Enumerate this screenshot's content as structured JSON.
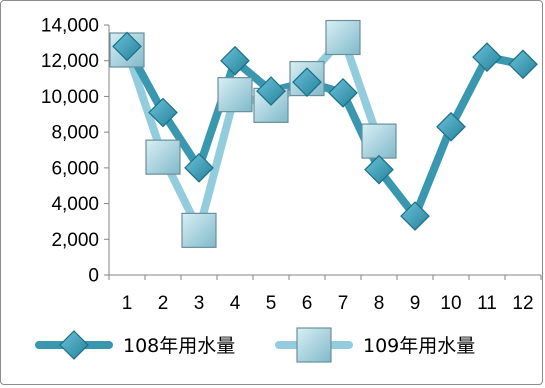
{
  "chart_data": {
    "type": "line",
    "title": "",
    "xlabel": "",
    "ylabel": "",
    "categories": [
      "1",
      "2",
      "3",
      "4",
      "5",
      "6",
      "7",
      "8",
      "9",
      "10",
      "11",
      "12"
    ],
    "ylim": [
      0,
      14000
    ],
    "yticks": [
      0,
      2000,
      4000,
      6000,
      8000,
      10000,
      12000,
      14000
    ],
    "ytick_labels": [
      "0",
      "2,000",
      "4,000",
      "6,000",
      "8,000",
      "10,000",
      "12,000",
      "14,000"
    ],
    "grid": false,
    "legend_position": "bottom",
    "series": [
      {
        "name": "108年用水量",
        "values": [
          12800,
          9100,
          6000,
          12000,
          10300,
          10800,
          10200,
          5900,
          3300,
          8300,
          12200,
          11800
        ],
        "color": "#3a97b0",
        "marker": "diamond"
      },
      {
        "name": "109年用水量",
        "values": [
          12600,
          6600,
          2500,
          10100,
          9500,
          11000,
          13300,
          7500,
          null,
          null,
          null,
          null
        ],
        "color": "#93cddd",
        "marker": "square"
      }
    ]
  }
}
